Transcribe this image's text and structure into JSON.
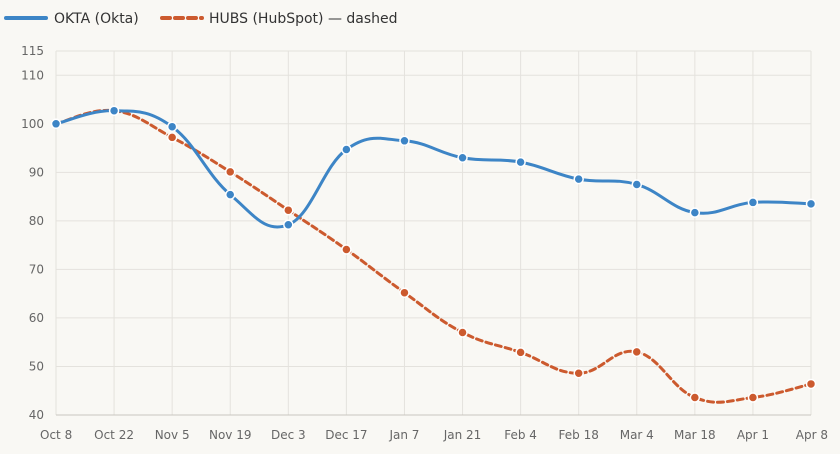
{
  "chart_data": {
    "type": "line",
    "categories": [
      "Oct 8",
      "Oct 22",
      "Nov 5",
      "Nov 19",
      "Dec 3",
      "Dec 17",
      "Jan 7",
      "Jan 21",
      "Feb 4",
      "Feb 18",
      "Mar 4",
      "Mar 18",
      "Apr 1",
      "Apr 8"
    ],
    "series": [
      {
        "name": "OKTA (Okta)",
        "color": "#3d85c6",
        "dashed": false,
        "values": [
          100,
          102.7,
          99.4,
          85.4,
          79.2,
          94.7,
          96.5,
          93,
          92.1,
          88.6,
          87.5,
          81.7,
          83.8,
          83.5
        ]
      },
      {
        "name": "HUBS (HubSpot) — dashed",
        "color": "#cc5a2e",
        "dashed": true,
        "values": [
          100,
          102.7,
          97.2,
          90.1,
          82.2,
          74.1,
          65.2,
          57,
          52.9,
          48.6,
          53,
          43.6,
          43.6,
          46.4
        ]
      }
    ],
    "yticks": [
      40,
      50,
      60,
      70,
      80,
      90,
      100,
      110,
      115
    ],
    "ylim": [
      40,
      115
    ],
    "grid": true,
    "legend_position": "top-left",
    "title": "",
    "xlabel": "",
    "ylabel": ""
  }
}
